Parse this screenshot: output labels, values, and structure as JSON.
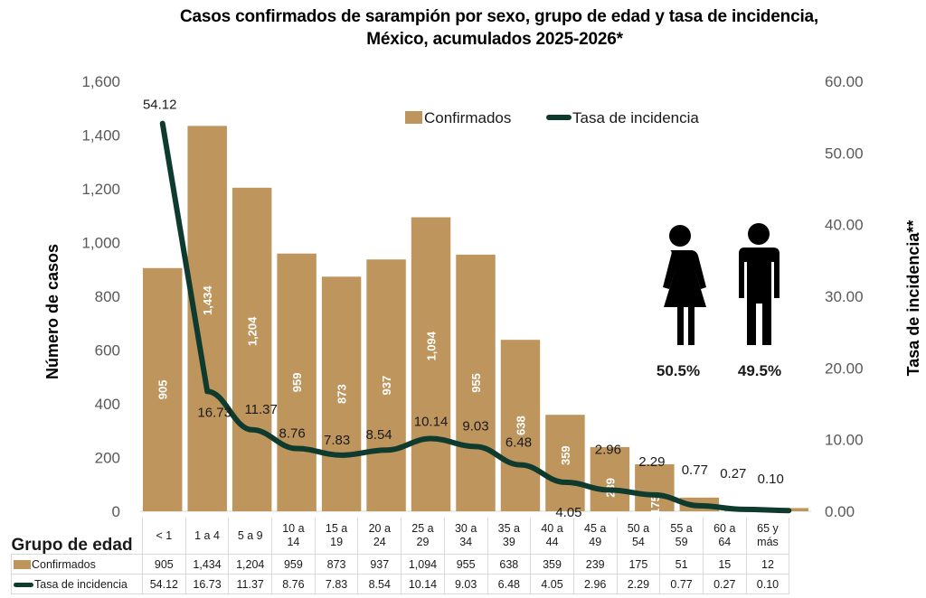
{
  "title": {
    "line1": "Casos confirmados  de sarampión por sexo, grupo de edad y tasa de incidencia,",
    "line2": "México, acumulados 2025-2026*"
  },
  "colors": {
    "bar": "#BE955C",
    "line": "#0F3A2E",
    "axis_text": "#595959"
  },
  "legend": {
    "bar_label": "Confirmados",
    "line_label": "Tasa de incidencia"
  },
  "sex": {
    "female_icon": "female-person-icon",
    "male_icon": "male-person-icon",
    "female_pct": "50.5%",
    "male_pct": "49.5%"
  },
  "table": {
    "header_label": "Grupo de edad",
    "row1_label": "Confirmados",
    "row2_label": "Tasa de incidencia",
    "categories": [
      [
        "< 1",
        ""
      ],
      [
        "1 a 4",
        ""
      ],
      [
        "5 a 9",
        ""
      ],
      [
        "10 a",
        "14"
      ],
      [
        "15 a",
        "19"
      ],
      [
        "20 a",
        "24"
      ],
      [
        "25 a",
        "29"
      ],
      [
        "30 a",
        "34"
      ],
      [
        "35 a",
        "39"
      ],
      [
        "40 a",
        "44"
      ],
      [
        "45 a",
        "49"
      ],
      [
        "50 a",
        "54"
      ],
      [
        "55 a",
        "59"
      ],
      [
        "60 a",
        "64"
      ],
      [
        "65 y",
        "más"
      ]
    ],
    "row1_values": [
      "905",
      "1,434",
      "1,204",
      "959",
      "873",
      "937",
      "1,094",
      "955",
      "638",
      "359",
      "239",
      "175",
      "51",
      "15",
      "12"
    ],
    "row2_values": [
      "54.12",
      "16.73",
      "11.37",
      "8.76",
      "7.83",
      "8.54",
      "10.14",
      "9.03",
      "6.48",
      "4.05",
      "2.96",
      "2.29",
      "0.77",
      "0.27",
      "0.10"
    ]
  },
  "chart_data": {
    "type": "bar",
    "title": "Casos confirmados  de sarampión por sexo, grupo de edad y tasa de incidencia, México, acumulados 2025-2026*",
    "xlabel": "Grupo de edad",
    "ylabel": "Número de casos",
    "y2label": "Tasa de incidencia**",
    "categories": [
      "< 1",
      "1 a 4",
      "5 a 9",
      "10 a 14",
      "15 a 19",
      "20 a 24",
      "25 a 29",
      "30 a 34",
      "35 a 39",
      "40 a 44",
      "45 a 49",
      "50 a 54",
      "55 a 59",
      "60 a 64",
      "65 y más"
    ],
    "series": [
      {
        "name": "Confirmados",
        "type": "bar",
        "axis": "left",
        "values": [
          905,
          1434,
          1204,
          959,
          873,
          937,
          1094,
          955,
          638,
          359,
          239,
          175,
          51,
          15,
          12
        ],
        "labels": [
          "905",
          "1,434",
          "1,204",
          "959",
          "873",
          "937",
          "1,094",
          "955",
          "638",
          "359",
          "239",
          "175",
          "",
          "",
          ""
        ]
      },
      {
        "name": "Tasa de incidencia",
        "type": "line",
        "axis": "right",
        "values": [
          54.12,
          16.73,
          11.37,
          8.76,
          7.83,
          8.54,
          10.14,
          9.03,
          6.48,
          4.05,
          2.96,
          2.29,
          0.77,
          0.27,
          0.1
        ],
        "labels": [
          "54.12",
          "16.73",
          "11.37",
          "8.76",
          "7.83",
          "8.54",
          "10.14",
          "9.03",
          "6.48",
          "4.05",
          "2.96",
          "2.29",
          "0.77",
          "0.27",
          "0.10"
        ]
      }
    ],
    "ylim": [
      0,
      1600
    ],
    "yticks": [
      0,
      200,
      400,
      600,
      800,
      1000,
      1200,
      1400,
      1600
    ],
    "ytick_labels": [
      "0",
      "200",
      "400",
      "600",
      "800",
      "1,000",
      "1,200",
      "1,400",
      "1,600"
    ],
    "y2lim": [
      0,
      60
    ],
    "y2ticks": [
      0,
      10,
      20,
      30,
      40,
      50,
      60
    ],
    "y2tick_labels": [
      "0.00",
      "10.00",
      "20.00",
      "30.00",
      "40.00",
      "50.00",
      "60.00"
    ],
    "grid": false,
    "legend_position": "top-center",
    "data_table": true
  }
}
